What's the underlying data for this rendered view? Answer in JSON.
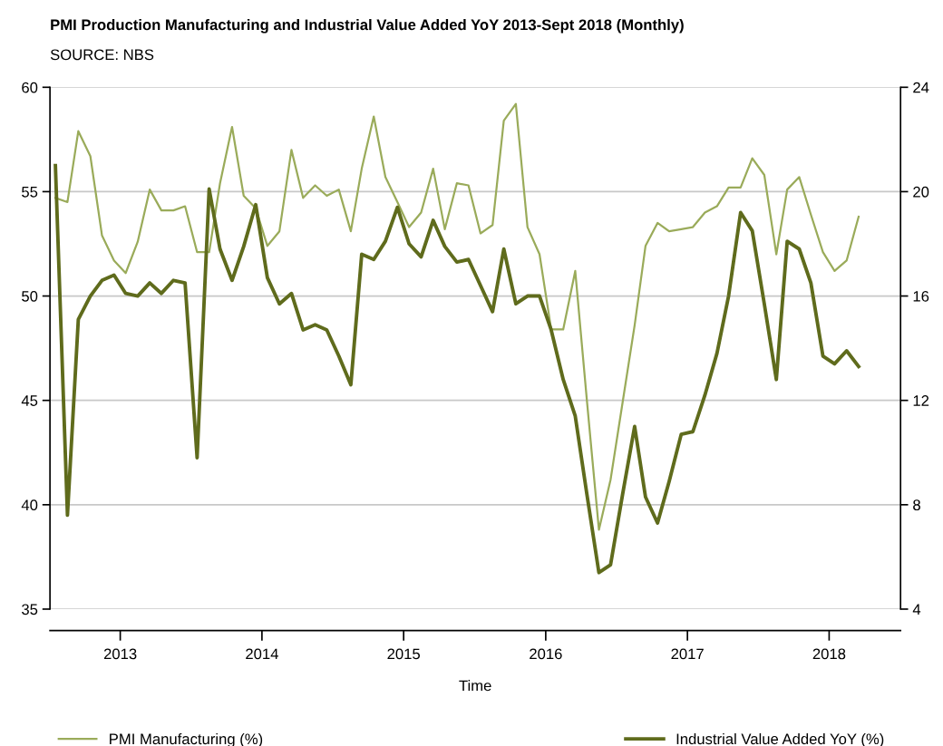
{
  "chart_data": {
    "type": "line",
    "title": "PMI Production Manufacturing and Industrial Value Added YoY 2013-Sept 2018 (Monthly)",
    "annotations": [
      "SOURCE: NBS"
    ],
    "xlabel": "Time",
    "x": [
      "2013-01-15",
      "2013-02-15",
      "2013-03-15",
      "2013-04-15",
      "2013-05-15",
      "2013-06-15",
      "2013-07-15",
      "2013-08-15",
      "2013-09-15",
      "2013-10-15",
      "2013-11-15",
      "2013-12-15",
      "2014-01-15",
      "2014-02-15",
      "2014-03-15",
      "2014-04-15",
      "2014-05-15",
      "2014-06-15",
      "2014-07-15",
      "2014-08-15",
      "2014-09-15",
      "2014-10-15",
      "2014-11-15",
      "2014-12-15",
      "2015-01-15",
      "2015-02-15",
      "2015-03-15",
      "2015-04-15",
      "2015-05-15",
      "2015-06-15",
      "2015-07-15",
      "2015-08-15",
      "2015-09-15",
      "2015-10-15",
      "2015-11-15",
      "2015-12-15",
      "2016-01-15",
      "2016-02-15",
      "2016-03-15",
      "2016-04-15",
      "2016-05-15",
      "2016-06-15",
      "2016-07-15",
      "2016-08-15",
      "2016-09-15",
      "2016-10-15",
      "2016-11-15",
      "2016-12-15",
      "2017-01-15",
      "2017-02-15",
      "2017-03-15",
      "2017-04-15",
      "2017-05-15",
      "2017-06-15",
      "2017-07-15",
      "2017-08-15",
      "2017-09-15",
      "2017-10-15",
      "2017-11-15",
      "2017-12-15",
      "2018-01-15",
      "2018-02-15",
      "2018-03-15",
      "2018-04-15",
      "2018-05-15",
      "2018-06-15",
      "2018-07-15",
      "2018-08-15",
      "2018-09-15"
    ],
    "series": [
      {
        "name": "PMI Manufacturing (%)",
        "color": "#9aab5a",
        "values": [
          54.7,
          54.5,
          57.9,
          56.7,
          52.9,
          51.7,
          51.1,
          52.6,
          55.1,
          54.1,
          54.1,
          54.3,
          52.1,
          52.1,
          55.4,
          58.1,
          54.8,
          54.2,
          52.4,
          53.1,
          57.0,
          54.7,
          55.3,
          54.8,
          55.1,
          53.1,
          56.1,
          58.6,
          55.7,
          54.5,
          53.3,
          54.0,
          56.1,
          53.2,
          55.4,
          55.3,
          53.0,
          53.4,
          58.4,
          59.2,
          53.3,
          52.0,
          48.4,
          48.4,
          51.2,
          45.0,
          38.8,
          41.2,
          44.9,
          48.6,
          52.4,
          53.5,
          53.1,
          53.2,
          53.3,
          54.0,
          54.3,
          55.2,
          55.2,
          56.6,
          55.8,
          52.0,
          55.1,
          55.7,
          53.9,
          52.1,
          51.2,
          51.7,
          53.8
        ]
      },
      {
        "name": "Industrial Value Added YoY (%)",
        "color": "#5f6b1c",
        "axis": "y2",
        "values": [
          21.0,
          7.6,
          15.1,
          16.0,
          16.6,
          16.8,
          16.1,
          16.0,
          16.5,
          16.1,
          16.6,
          16.5,
          9.8,
          20.1,
          17.8,
          16.6,
          17.9,
          19.5,
          16.7,
          15.7,
          16.1,
          14.7,
          14.9,
          14.7,
          13.7,
          12.6,
          17.6,
          17.4,
          18.1,
          19.4,
          18.0,
          17.5,
          18.9,
          17.9,
          17.3,
          17.4,
          16.4,
          15.4,
          17.8,
          15.7,
          16.0,
          16.0,
          14.7,
          12.8,
          11.4,
          8.4,
          5.4,
          5.7,
          8.4,
          11.0,
          8.3,
          7.3,
          8.9,
          10.7,
          10.8,
          12.2,
          13.8,
          16.0,
          19.2,
          18.5,
          15.7,
          12.8,
          18.1,
          17.8,
          16.5,
          13.7,
          13.4,
          13.9,
          13.3
        ]
      }
    ],
    "xlim": [
      "2013-01-01",
      "2019-01-01"
    ],
    "xticks": [
      {
        "value": "2013-07-01",
        "label": "2013"
      },
      {
        "value": "2014-07-01",
        "label": "2014"
      },
      {
        "value": "2015-07-01",
        "label": "2015"
      },
      {
        "value": "2016-07-01",
        "label": "2016"
      },
      {
        "value": "2017-07-01",
        "label": "2017"
      },
      {
        "value": "2018-07-01",
        "label": "2018"
      }
    ],
    "ylim": [
      35,
      60
    ],
    "yticks": [
      35,
      40,
      45,
      50,
      55,
      60
    ],
    "y2lim": [
      4,
      24
    ],
    "y2ticks": [
      4,
      8,
      12,
      16,
      20,
      24
    ],
    "grid": "y",
    "legend": "bottom",
    "marker": "none",
    "line_style": "solid"
  }
}
